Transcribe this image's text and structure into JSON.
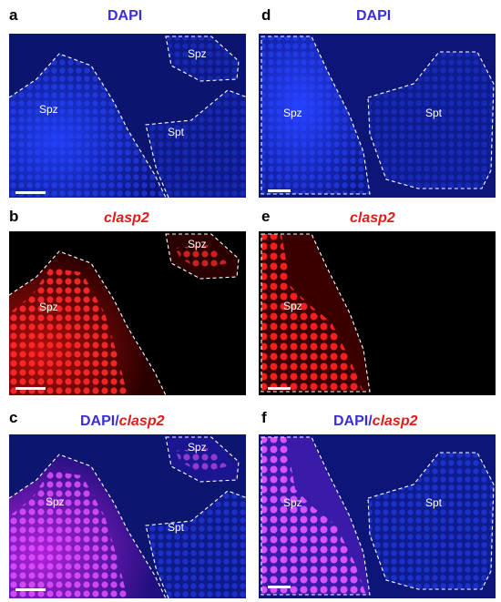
{
  "panels": {
    "a": {
      "letter": "a",
      "title": "DAPI",
      "labels": [
        "Spz",
        "Spz",
        "Spt"
      ]
    },
    "b": {
      "letter": "b",
      "title": "clasp2",
      "labels": [
        "Spz",
        "Spz"
      ]
    },
    "c": {
      "letter": "c",
      "title_prefix": "DAPI/",
      "title_suffix": "clasp2",
      "labels": [
        "Spz",
        "Spz",
        "Spt"
      ]
    },
    "d": {
      "letter": "d",
      "title": "DAPI",
      "labels": [
        "Spz",
        "Spt"
      ]
    },
    "e": {
      "letter": "e",
      "title": "clasp2",
      "labels": [
        "Spz"
      ]
    },
    "f": {
      "letter": "f",
      "title_prefix": "DAPI/",
      "title_suffix": "clasp2",
      "labels": [
        "Spz",
        "Spt"
      ]
    }
  },
  "colors": {
    "dapi_text": "#3a2fd6",
    "clasp2_text": "#e31b1b",
    "dapi_signal": "#1a2fd0",
    "clasp2_signal": "#ff1a1a",
    "merge_signal": "#d43cff",
    "outline": "#ffffff"
  }
}
